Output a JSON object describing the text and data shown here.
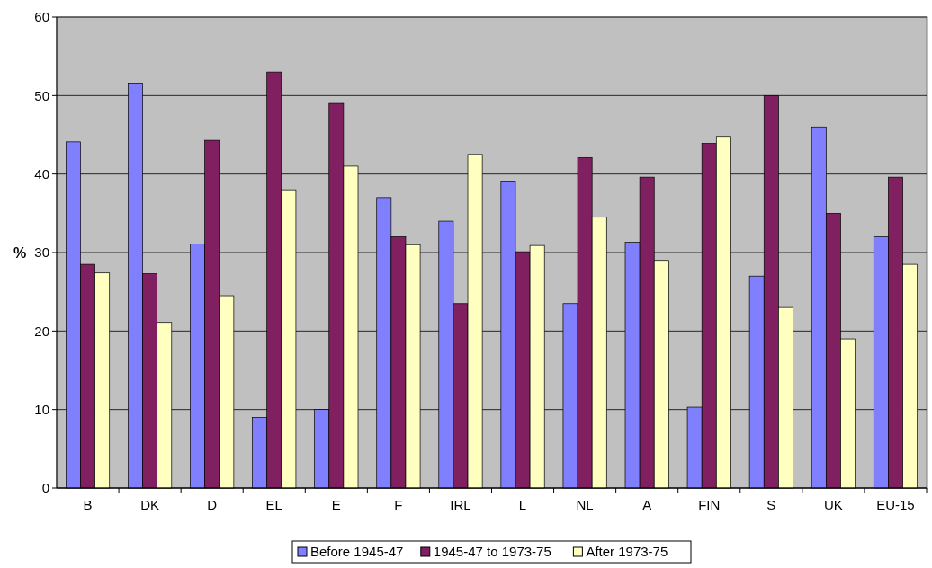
{
  "chart_data": {
    "type": "bar",
    "ylabel": "%",
    "categories": [
      "B",
      "DK",
      "D",
      "EL",
      "E",
      "F",
      "IRL",
      "L",
      "NL",
      "A",
      "FIN",
      "S",
      "UK",
      "EU-15"
    ],
    "series": [
      {
        "name": "Before 1945-47",
        "color": "#8080ff",
        "values": [
          44.1,
          51.6,
          31.1,
          9.0,
          10.0,
          37.0,
          34.0,
          39.1,
          23.5,
          31.3,
          10.3,
          27.0,
          46.0,
          32.0
        ]
      },
      {
        "name": "1945-47 to 1973-75",
        "color": "#802060",
        "values": [
          28.5,
          27.3,
          44.3,
          53.0,
          49.0,
          32.0,
          23.5,
          30.1,
          42.1,
          39.6,
          43.9,
          50.0,
          35.0,
          39.6
        ]
      },
      {
        "name": "After 1973-75",
        "color": "#ffffc0",
        "values": [
          27.4,
          21.1,
          24.5,
          38.0,
          41.0,
          31.0,
          42.5,
          30.9,
          34.5,
          29.0,
          44.8,
          23.0,
          19.0,
          28.5
        ]
      }
    ],
    "ylim": [
      0,
      60
    ],
    "yticks": [
      0,
      10,
      20,
      30,
      40,
      50,
      60
    ],
    "grid": "y",
    "legend": "bottom"
  }
}
